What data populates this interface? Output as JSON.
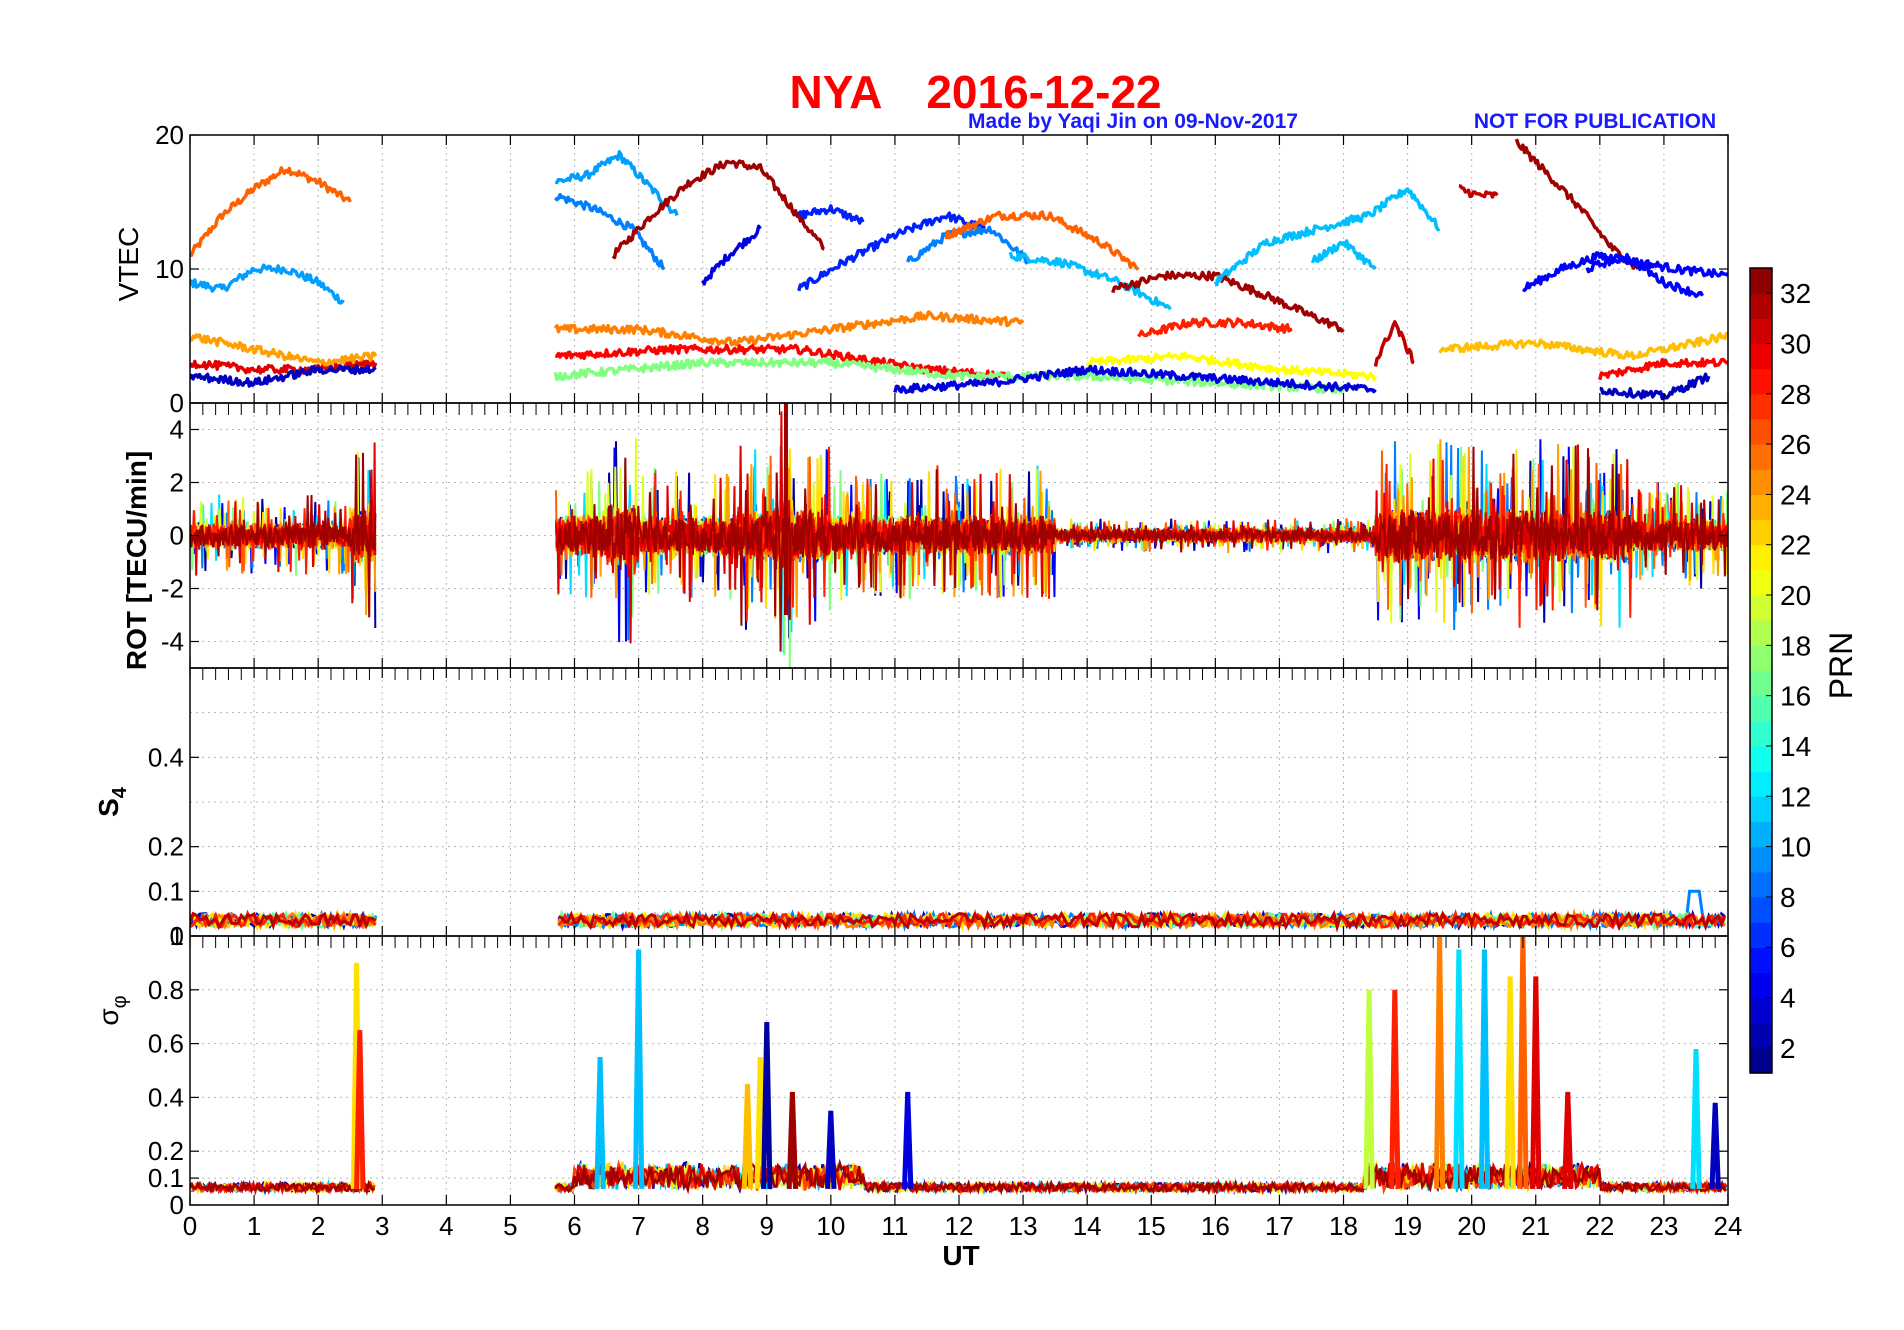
{
  "figure": {
    "title_station": "NYA",
    "title_date": "2016-12-22",
    "credit": "Made by Yaqi Jin on 09-Nov-2017",
    "notice": "NOT FOR PUBLICATION",
    "title_color": "#ff0000",
    "credit_color": "#1a1aff"
  },
  "chart_data": [
    {
      "type": "line",
      "panel": "VTEC",
      "ylabel": "VTEC",
      "xlim": [
        0,
        24
      ],
      "ylim": [
        0,
        20
      ],
      "yticks": [
        0,
        10,
        20
      ],
      "grid": true,
      "gaps": [
        [
          2.9,
          5.7
        ]
      ],
      "series": [
        {
          "prn": 26,
          "x": [
            0,
            0.5,
            1,
            1.5,
            2,
            2.5
          ],
          "values": [
            11,
            14,
            16,
            17.5,
            16.5,
            15
          ]
        },
        {
          "prn": 10,
          "x": [
            0,
            0.5,
            1,
            1.5,
            2,
            2.4
          ],
          "values": [
            9,
            8.5,
            10,
            10,
            9,
            7.5
          ]
        },
        {
          "prn": 10,
          "x": [
            5.7,
            6.2,
            6.7,
            7.2,
            7.6
          ],
          "values": [
            16.5,
            17,
            18.5,
            16,
            14
          ]
        },
        {
          "prn": 9,
          "x": [
            5.7,
            6.3,
            6.9,
            7.4
          ],
          "values": [
            15.5,
            14.5,
            13,
            10
          ]
        },
        {
          "prn": 32,
          "x": [
            6.6,
            7.2,
            7.8,
            8.4,
            8.9,
            9.4,
            9.9
          ],
          "values": [
            11,
            14,
            16.5,
            18,
            17.5,
            14.5,
            11.5
          ]
        },
        {
          "prn": 4,
          "x": [
            8.0,
            8.4,
            8.9
          ],
          "values": [
            9,
            11,
            13
          ]
        },
        {
          "prn": 6,
          "x": [
            9.5,
            10.0,
            10.5
          ],
          "values": [
            14,
            14.5,
            13.5
          ]
        },
        {
          "prn": 6,
          "x": [
            9.5,
            10.2,
            11.0,
            11.8,
            12.4
          ],
          "values": [
            8.5,
            10.5,
            12.5,
            14,
            13
          ]
        },
        {
          "prn": 9,
          "x": [
            11.2,
            11.8,
            12.5,
            13.1
          ],
          "values": [
            10.5,
            12.5,
            13,
            10.5
          ]
        },
        {
          "prn": 26,
          "x": [
            11.8,
            12.6,
            13.4,
            14.2,
            14.8
          ],
          "values": [
            12.5,
            14,
            14,
            12,
            10
          ]
        },
        {
          "prn": 11,
          "x": [
            12.8,
            13.6,
            14.5,
            15.3
          ],
          "values": [
            11,
            10.5,
            9,
            7
          ]
        },
        {
          "prn": 32,
          "x": [
            14.4,
            15.2,
            16.0,
            16.8,
            17.5,
            18.0
          ],
          "values": [
            8.5,
            9.5,
            9.5,
            8,
            6.5,
            5.5
          ]
        },
        {
          "prn": 28,
          "x": [
            14.8,
            15.6,
            16.4,
            17.2
          ],
          "values": [
            5,
            6,
            6,
            5.5
          ]
        },
        {
          "prn": 11,
          "x": [
            16.0,
            16.8,
            17.6,
            18.4,
            19.0,
            19.5
          ],
          "values": [
            9,
            12,
            13,
            14,
            16,
            13
          ]
        },
        {
          "prn": 11,
          "x": [
            17.5,
            18.0,
            18.5
          ],
          "values": [
            10.5,
            12,
            10
          ]
        },
        {
          "prn": 31,
          "x": [
            19.8,
            20.1,
            20.4
          ],
          "values": [
            16,
            15.5,
            15.5
          ]
        },
        {
          "prn": 32,
          "x": [
            20.7,
            21.2,
            21.7,
            22.2,
            22.6
          ],
          "values": [
            19.5,
            17,
            14.5,
            11.5,
            10
          ]
        },
        {
          "prn": 5,
          "x": [
            20.8,
            21.4,
            22.0,
            22.6,
            23.2,
            24.0
          ],
          "values": [
            8.5,
            10,
            11,
            10.5,
            10,
            9.5
          ]
        },
        {
          "prn": 5,
          "x": [
            21.8,
            22.4,
            23.0,
            23.6
          ],
          "values": [
            10,
            11,
            9,
            8
          ]
        },
        {
          "prn": 25,
          "x": [
            5.7,
            7.0,
            8.5,
            10.0,
            11.5,
            13.0
          ],
          "values": [
            5.5,
            5.5,
            4.5,
            5.5,
            6.5,
            6
          ]
        },
        {
          "prn": 29,
          "x": [
            5.7,
            7.5,
            9.5,
            11.5,
            12.8
          ],
          "values": [
            3.5,
            4,
            4,
            2.5,
            2
          ]
        },
        {
          "prn": 17,
          "x": [
            5.7,
            8.0,
            10.0,
            12.0,
            14.0,
            16.0,
            18.0
          ],
          "values": [
            2,
            3,
            3,
            2,
            2,
            1.5,
            1
          ]
        },
        {
          "prn": 21,
          "x": [
            14.0,
            15.5,
            17.0,
            18.5
          ],
          "values": [
            3,
            3.5,
            2.5,
            2
          ]
        },
        {
          "prn": 4,
          "x": [
            11.0,
            12.5,
            14.0,
            15.5,
            17.0,
            18.5
          ],
          "values": [
            1,
            1.5,
            2.5,
            2,
            1.5,
            1
          ]
        },
        {
          "prn": 31,
          "x": [
            18.5,
            18.8,
            19.1
          ],
          "values": [
            3,
            6,
            3
          ]
        },
        {
          "prn": 23,
          "x": [
            19.5,
            21.0,
            22.5,
            24.0
          ],
          "values": [
            4,
            4.5,
            3.5,
            5
          ]
        },
        {
          "prn": 30,
          "x": [
            0,
            1,
            2,
            2.9
          ],
          "values": [
            3,
            2.5,
            2.5,
            3
          ]
        },
        {
          "prn": 24,
          "x": [
            0,
            1,
            2,
            2.9
          ],
          "values": [
            5,
            4,
            3,
            3.5
          ]
        },
        {
          "prn": 3,
          "x": [
            0,
            1,
            2,
            2.9
          ],
          "values": [
            2,
            1.5,
            2.5,
            2.5
          ]
        },
        {
          "prn": 29,
          "x": [
            22.0,
            23.0,
            24.0
          ],
          "values": [
            2,
            3,
            3
          ]
        },
        {
          "prn": 3,
          "x": [
            22.0,
            23.0,
            23.7
          ],
          "values": [
            1,
            0.5,
            2
          ]
        }
      ]
    },
    {
      "type": "line",
      "panel": "ROT",
      "ylabel": "ROT [TECU/min]",
      "xlim": [
        0,
        24
      ],
      "ylim": [
        -5,
        5
      ],
      "yticks": [
        -4,
        -2,
        0,
        2,
        4
      ],
      "grid": true,
      "gaps": [
        [
          2.9,
          5.7
        ]
      ],
      "activity": [
        {
          "x": [
            0,
            2.9
          ],
          "amplitude": 1.5
        },
        {
          "x": [
            2.5,
            2.9
          ],
          "amplitude": 3.5
        },
        {
          "x": [
            5.7,
            8.5
          ],
          "amplitude": 2.5
        },
        {
          "x": [
            6.5,
            7.0
          ],
          "amplitude": 4.2
        },
        {
          "x": [
            8.5,
            10.0
          ],
          "amplitude": 3.5
        },
        {
          "x": [
            9.2,
            9.4
          ],
          "amplitude": 5
        },
        {
          "x": [
            10.0,
            13.5
          ],
          "amplitude": 2.5
        },
        {
          "x": [
            13.5,
            18.5
          ],
          "amplitude": 0.5
        },
        {
          "x": [
            18.5,
            22.5
          ],
          "amplitude": 3.5
        },
        {
          "x": [
            22.5,
            24.0
          ],
          "amplitude": 2
        }
      ]
    },
    {
      "type": "line",
      "panel": "S4",
      "ylabel": "S4",
      "xlim": [
        0,
        24
      ],
      "ylim": [
        0,
        0.6
      ],
      "yticks": [
        0,
        0.1,
        0.2,
        0.4
      ],
      "top_tick_label": "1",
      "grid": true,
      "baseline": 0.035,
      "spread": 0.03,
      "peaks": [
        {
          "x": 23.5,
          "value": 0.1
        }
      ]
    },
    {
      "type": "line",
      "panel": "sigma_phi",
      "ylabel": "σφ",
      "xlim": [
        0,
        24
      ],
      "ylim": [
        0,
        1
      ],
      "yticks": [
        0,
        0.1,
        0.2,
        0.4,
        0.6,
        0.8
      ],
      "xticks": [
        0,
        1,
        2,
        3,
        4,
        5,
        6,
        7,
        8,
        9,
        10,
        11,
        12,
        13,
        14,
        15,
        16,
        17,
        18,
        19,
        20,
        21,
        22,
        23,
        24
      ],
      "xlabel": "UT",
      "grid": true,
      "baseline": 0.06,
      "peaks": [
        {
          "x": 2.6,
          "value": 0.9,
          "prn": 22
        },
        {
          "x": 2.65,
          "value": 0.65,
          "prn": 28
        },
        {
          "x": 6.4,
          "value": 0.55,
          "prn": 11
        },
        {
          "x": 7.0,
          "value": 0.95,
          "prn": 11
        },
        {
          "x": 8.7,
          "value": 0.45,
          "prn": 23
        },
        {
          "x": 8.9,
          "value": 0.55,
          "prn": 22
        },
        {
          "x": 9.0,
          "value": 0.68,
          "prn": 2
        },
        {
          "x": 9.4,
          "value": 0.42,
          "prn": 32
        },
        {
          "x": 10.0,
          "value": 0.35,
          "prn": 3
        },
        {
          "x": 11.2,
          "value": 0.42,
          "prn": 4
        },
        {
          "x": 18.4,
          "value": 0.8,
          "prn": 19
        },
        {
          "x": 18.8,
          "value": 0.8,
          "prn": 28
        },
        {
          "x": 19.5,
          "value": 1.0,
          "prn": 25
        },
        {
          "x": 19.8,
          "value": 0.95,
          "prn": 12
        },
        {
          "x": 20.2,
          "value": 0.95,
          "prn": 11
        },
        {
          "x": 20.6,
          "value": 0.85,
          "prn": 22
        },
        {
          "x": 20.8,
          "value": 1.0,
          "prn": 26
        },
        {
          "x": 21.0,
          "value": 0.85,
          "prn": 30
        },
        {
          "x": 21.5,
          "value": 0.42,
          "prn": 30
        },
        {
          "x": 23.5,
          "value": 0.58,
          "prn": 12
        },
        {
          "x": 23.8,
          "value": 0.38,
          "prn": 3
        }
      ]
    }
  ],
  "colorbar": {
    "label": "PRN",
    "min": 1,
    "max": 33,
    "ticks": [
      2,
      4,
      6,
      8,
      10,
      12,
      14,
      16,
      18,
      20,
      22,
      24,
      26,
      28,
      30,
      32
    ],
    "colormap": "jet"
  }
}
